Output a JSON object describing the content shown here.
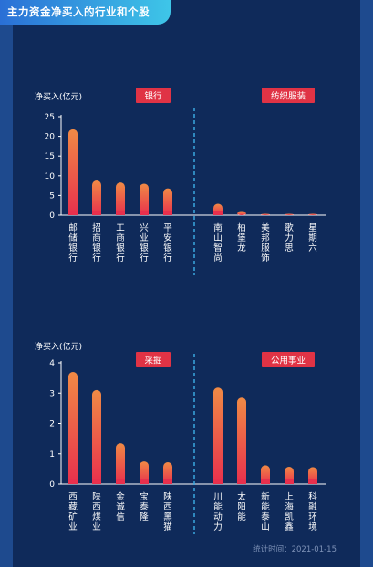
{
  "header": {
    "title": "主力资金净买入的行业和个股"
  },
  "footer": {
    "stat_time": "统计时间：2021-01-15"
  },
  "colors": {
    "bar_top": "#f08a45",
    "bar_bottom": "#e8304d",
    "tag_bg": "#e03345",
    "divider": "#3aa7e0",
    "text": "#ffffff",
    "axis": "#ffffff"
  },
  "chart_data": [
    {
      "type": "bar",
      "ylabel": "净买入(亿元)",
      "ylim": [
        0,
        25
      ],
      "yticks": [
        0,
        5,
        10,
        15,
        20,
        25
      ],
      "groups": [
        {
          "label": "银行",
          "categories": [
            "邮储银行",
            "招商银行",
            "工商银行",
            "兴业银行",
            "平安银行"
          ],
          "values": [
            21.8,
            8.8,
            8.3,
            8.0,
            6.8
          ]
        },
        {
          "label": "纺织服装",
          "categories": [
            "南山智尚",
            "柏堡龙",
            "美邦服饰",
            "歌力思",
            "星期六"
          ],
          "values": [
            2.9,
            0.8,
            0.3,
            0.2,
            0.2
          ]
        }
      ]
    },
    {
      "type": "bar",
      "ylabel": "净买入(亿元)",
      "ylim": [
        0,
        4
      ],
      "yticks": [
        0,
        1,
        2,
        3,
        4
      ],
      "groups": [
        {
          "label": "采掘",
          "categories": [
            "西藏矿业",
            "陕西煤业",
            "金诚信",
            "宝泰隆",
            "陕西黑猫"
          ],
          "values": [
            3.7,
            3.1,
            1.35,
            0.75,
            0.72
          ]
        },
        {
          "label": "公用事业",
          "categories": [
            "川能动力",
            "太阳能",
            "新能泰山",
            "上海凯鑫",
            "科融环境"
          ],
          "values": [
            3.18,
            2.85,
            0.62,
            0.57,
            0.56
          ]
        }
      ]
    }
  ]
}
